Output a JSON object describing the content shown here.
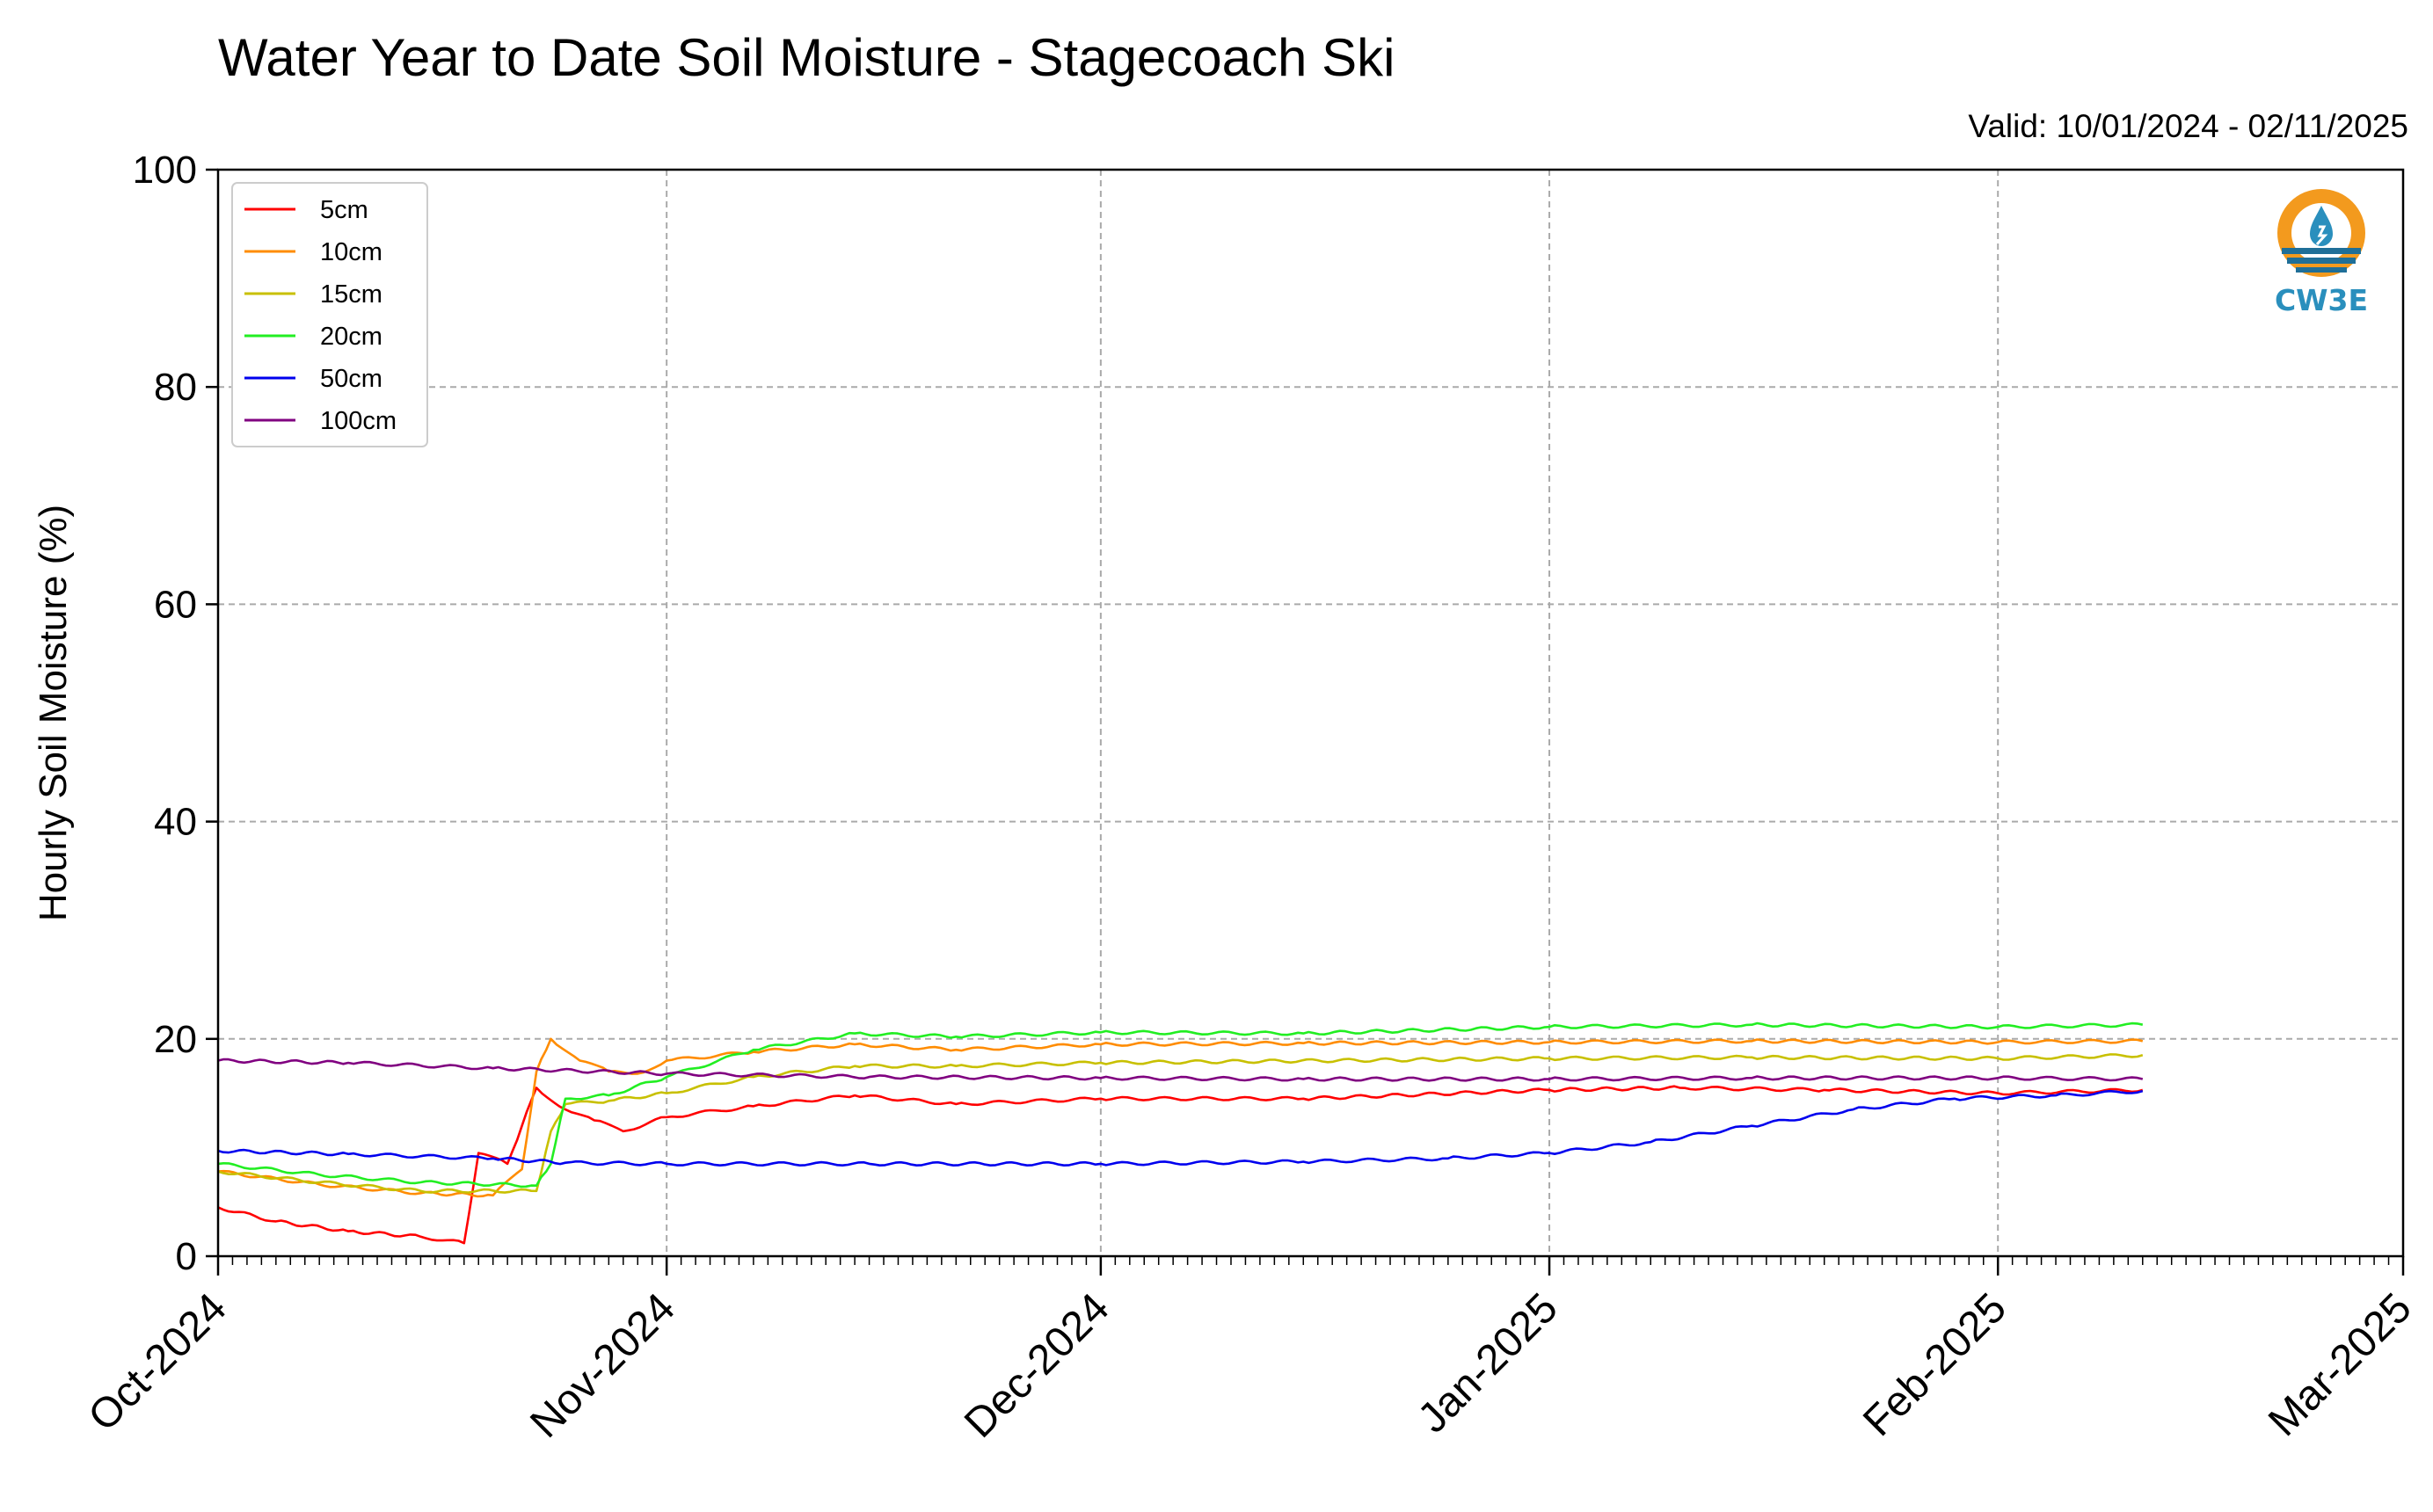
{
  "chart_data": {
    "type": "line",
    "title": "Water Year to Date Soil Moisture - Stagecoach Ski",
    "subtitle": "Valid: 10/01/2024 - 02/11/2025",
    "xlabel": "",
    "ylabel": "Hourly Soil Moisture (%)",
    "xlim": [
      "2024-10-01",
      "2025-03-01"
    ],
    "ylim": [
      0,
      100
    ],
    "x_ticks": [
      "Oct-2024",
      "Nov-2024",
      "Dec-2024",
      "Jan-2025",
      "Feb-2025",
      "Mar-2025"
    ],
    "y_ticks": [
      0,
      20,
      40,
      60,
      80,
      100
    ],
    "grid": true,
    "legend_position": "top-left",
    "series": [
      {
        "name": "5cm",
        "color": "#ff0000",
        "points": [
          [
            "2024-10-01",
            4.5
          ],
          [
            "2024-10-05",
            3.2
          ],
          [
            "2024-10-10",
            2.3
          ],
          [
            "2024-10-15",
            1.8
          ],
          [
            "2024-10-18",
            1.2
          ],
          [
            "2024-10-19",
            9.5
          ],
          [
            "2024-10-21",
            8.5
          ],
          [
            "2024-10-22",
            12.0
          ],
          [
            "2024-10-23",
            15.5
          ],
          [
            "2024-10-25",
            13.5
          ],
          [
            "2024-10-27",
            12.5
          ],
          [
            "2024-10-29",
            11.5
          ],
          [
            "2024-11-01",
            12.8
          ],
          [
            "2024-11-07",
            13.8
          ],
          [
            "2024-11-14",
            14.8
          ],
          [
            "2024-11-21",
            14.0
          ],
          [
            "2024-12-01",
            14.5
          ],
          [
            "2024-12-15",
            14.5
          ],
          [
            "2025-01-01",
            15.3
          ],
          [
            "2025-01-10",
            15.5
          ],
          [
            "2025-01-20",
            15.3
          ],
          [
            "2025-02-01",
            15.0
          ],
          [
            "2025-02-11",
            15.3
          ]
        ]
      },
      {
        "name": "10cm",
        "color": "#ff8c00",
        "points": [
          [
            "2024-10-01",
            7.8
          ],
          [
            "2024-10-08",
            6.6
          ],
          [
            "2024-10-15",
            5.8
          ],
          [
            "2024-10-20",
            5.6
          ],
          [
            "2024-10-22",
            8.0
          ],
          [
            "2024-10-23",
            17.0
          ],
          [
            "2024-10-24",
            20.0
          ],
          [
            "2024-10-26",
            18.0
          ],
          [
            "2024-10-28",
            17.0
          ],
          [
            "2024-10-30",
            16.8
          ],
          [
            "2024-11-01",
            18.0
          ],
          [
            "2024-11-07",
            18.8
          ],
          [
            "2024-11-14",
            19.5
          ],
          [
            "2024-11-21",
            19.0
          ],
          [
            "2024-12-01",
            19.5
          ],
          [
            "2024-12-15",
            19.6
          ],
          [
            "2025-01-01",
            19.7
          ],
          [
            "2025-01-15",
            19.8
          ],
          [
            "2025-02-01",
            19.7
          ],
          [
            "2025-02-11",
            19.8
          ]
        ]
      },
      {
        "name": "15cm",
        "color": "#c8c000",
        "points": [
          [
            "2024-10-01",
            7.8
          ],
          [
            "2024-10-08",
            6.8
          ],
          [
            "2024-10-15",
            6.0
          ],
          [
            "2024-10-23",
            6.0
          ],
          [
            "2024-10-24",
            11.5
          ],
          [
            "2024-10-25",
            14.0
          ],
          [
            "2024-10-28",
            14.3
          ],
          [
            "2024-11-01",
            15.0
          ],
          [
            "2024-11-07",
            16.5
          ],
          [
            "2024-11-14",
            17.5
          ],
          [
            "2024-11-21",
            17.5
          ],
          [
            "2024-12-01",
            17.8
          ],
          [
            "2025-01-01",
            18.2
          ],
          [
            "2025-01-15",
            18.3
          ],
          [
            "2025-02-01",
            18.2
          ],
          [
            "2025-02-11",
            18.5
          ]
        ]
      },
      {
        "name": "20cm",
        "color": "#22ee22",
        "points": [
          [
            "2024-10-01",
            8.5
          ],
          [
            "2024-10-08",
            7.5
          ],
          [
            "2024-10-15",
            6.8
          ],
          [
            "2024-10-23",
            6.5
          ],
          [
            "2024-10-24",
            8.5
          ],
          [
            "2024-10-25",
            14.5
          ],
          [
            "2024-10-28",
            14.8
          ],
          [
            "2024-11-01",
            16.5
          ],
          [
            "2024-11-07",
            19.0
          ],
          [
            "2024-11-14",
            20.5
          ],
          [
            "2024-11-21",
            20.2
          ],
          [
            "2024-12-01",
            20.6
          ],
          [
            "2024-12-15",
            20.5
          ],
          [
            "2025-01-01",
            21.1
          ],
          [
            "2025-01-15",
            21.3
          ],
          [
            "2025-02-01",
            21.1
          ],
          [
            "2025-02-11",
            21.3
          ]
        ]
      },
      {
        "name": "50cm",
        "color": "#0000ee",
        "points": [
          [
            "2024-10-01",
            9.7
          ],
          [
            "2024-10-10",
            9.4
          ],
          [
            "2024-10-20",
            9.0
          ],
          [
            "2024-10-25",
            8.6
          ],
          [
            "2024-11-01",
            8.5
          ],
          [
            "2024-11-15",
            8.5
          ],
          [
            "2024-12-01",
            8.5
          ],
          [
            "2024-12-15",
            8.7
          ],
          [
            "2024-12-25",
            9.0
          ],
          [
            "2025-01-01",
            9.5
          ],
          [
            "2025-01-08",
            10.5
          ],
          [
            "2025-01-15",
            12.0
          ],
          [
            "2025-01-22",
            13.5
          ],
          [
            "2025-01-29",
            14.5
          ],
          [
            "2025-02-05",
            14.8
          ],
          [
            "2025-02-11",
            15.2
          ]
        ]
      },
      {
        "name": "100cm",
        "color": "#800080",
        "points": [
          [
            "2024-10-01",
            18.0
          ],
          [
            "2024-10-10",
            17.8
          ],
          [
            "2024-10-20",
            17.3
          ],
          [
            "2024-11-01",
            16.8
          ],
          [
            "2024-11-15",
            16.5
          ],
          [
            "2024-12-01",
            16.4
          ],
          [
            "2024-12-15",
            16.3
          ],
          [
            "2025-01-01",
            16.3
          ],
          [
            "2025-01-15",
            16.4
          ],
          [
            "2025-02-01",
            16.4
          ],
          [
            "2025-02-11",
            16.3
          ]
        ]
      }
    ]
  },
  "logo": {
    "text": "CW3E",
    "colors": {
      "sun": "#f39a1e",
      "water": "#1f6f98",
      "accent": "#2a8fbd"
    }
  }
}
